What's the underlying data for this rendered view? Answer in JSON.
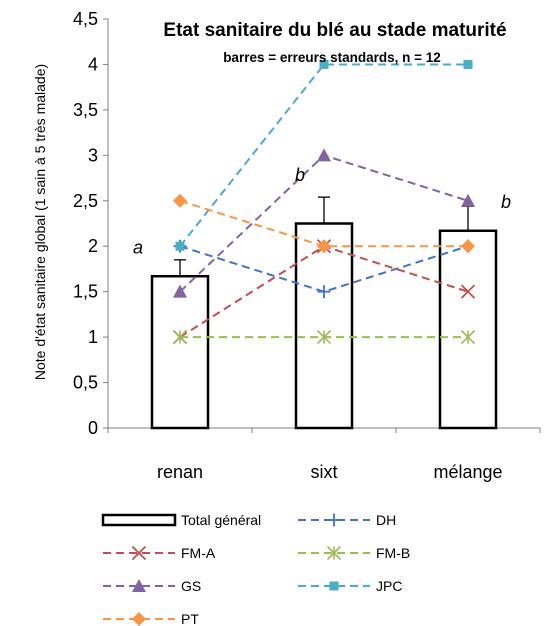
{
  "chart_data": {
    "type": "bar",
    "title": "Etat sanitaire du blé au stade maturité",
    "subtitle": "barres = erreurs standards, n = 12",
    "ylabel": "Note d'état sanitaire global (1 sain à 5 très malade)",
    "xlabel": "",
    "ylim": [
      0,
      4.5
    ],
    "yticks": [
      "0",
      "0,5",
      "1",
      "1,5",
      "2",
      "2,5",
      "3",
      "3,5",
      "4",
      "4,5"
    ],
    "categories": [
      "renan",
      "sixt",
      "mélange"
    ],
    "grid": false,
    "legend_position": "bottom",
    "bars": {
      "name": "Total général",
      "values": [
        1.67,
        2.25,
        2.17
      ],
      "errors": [
        0.18,
        0.29,
        0.27
      ],
      "fill": "#ffffff",
      "stroke": "#000000"
    },
    "significance_letters": [
      "a",
      "b",
      "b"
    ],
    "series": [
      {
        "name": "DH",
        "values": [
          2.0,
          1.5,
          2.0
        ],
        "color": "#4472C4",
        "marker": "plus"
      },
      {
        "name": "FM-A",
        "values": [
          1.0,
          2.0,
          1.5
        ],
        "color": "#C0504D",
        "marker": "x"
      },
      {
        "name": "FM-B",
        "values": [
          1.0,
          1.0,
          1.0
        ],
        "color": "#9BBB59",
        "marker": "star"
      },
      {
        "name": "GS",
        "values": [
          1.5,
          3.0,
          2.5
        ],
        "color": "#8064A2",
        "marker": "triangle"
      },
      {
        "name": "JPC",
        "values": [
          2.0,
          4.0,
          4.0
        ],
        "color": "#4BACC6",
        "marker": "square"
      },
      {
        "name": "PT",
        "values": [
          2.5,
          2.0,
          2.0
        ],
        "color": "#F79646",
        "marker": "diamond"
      }
    ]
  }
}
